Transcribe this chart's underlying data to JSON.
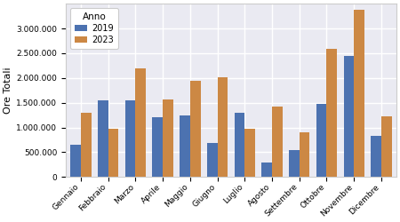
{
  "months": [
    "Gennaio",
    "Febbraio",
    "Marzo",
    "Aprile",
    "Maggio",
    "Giugno",
    "Luglio",
    "Agosto",
    "Settembre",
    "Ottobre",
    "Novembre",
    "Dicembre"
  ],
  "values_2019": [
    660000,
    1540000,
    1550000,
    1210000,
    1240000,
    680000,
    1290000,
    300000,
    550000,
    1470000,
    2450000,
    840000
  ],
  "values_2023": [
    1290000,
    980000,
    2190000,
    1560000,
    1950000,
    2020000,
    970000,
    1420000,
    910000,
    2580000,
    3380000,
    1230000
  ],
  "color_2019": "#4c72b0",
  "color_2023": "#cc8844",
  "ylabel": "Ore Totali",
  "legend_title": "Anno",
  "legend_2019": "2019",
  "legend_2023": "2023",
  "ylim": [
    0,
    3500000
  ],
  "yticks": [
    0,
    500000,
    1000000,
    1500000,
    2000000,
    2500000,
    3000000
  ],
  "bg_color": "#eaeaf2",
  "grid_color": "white"
}
